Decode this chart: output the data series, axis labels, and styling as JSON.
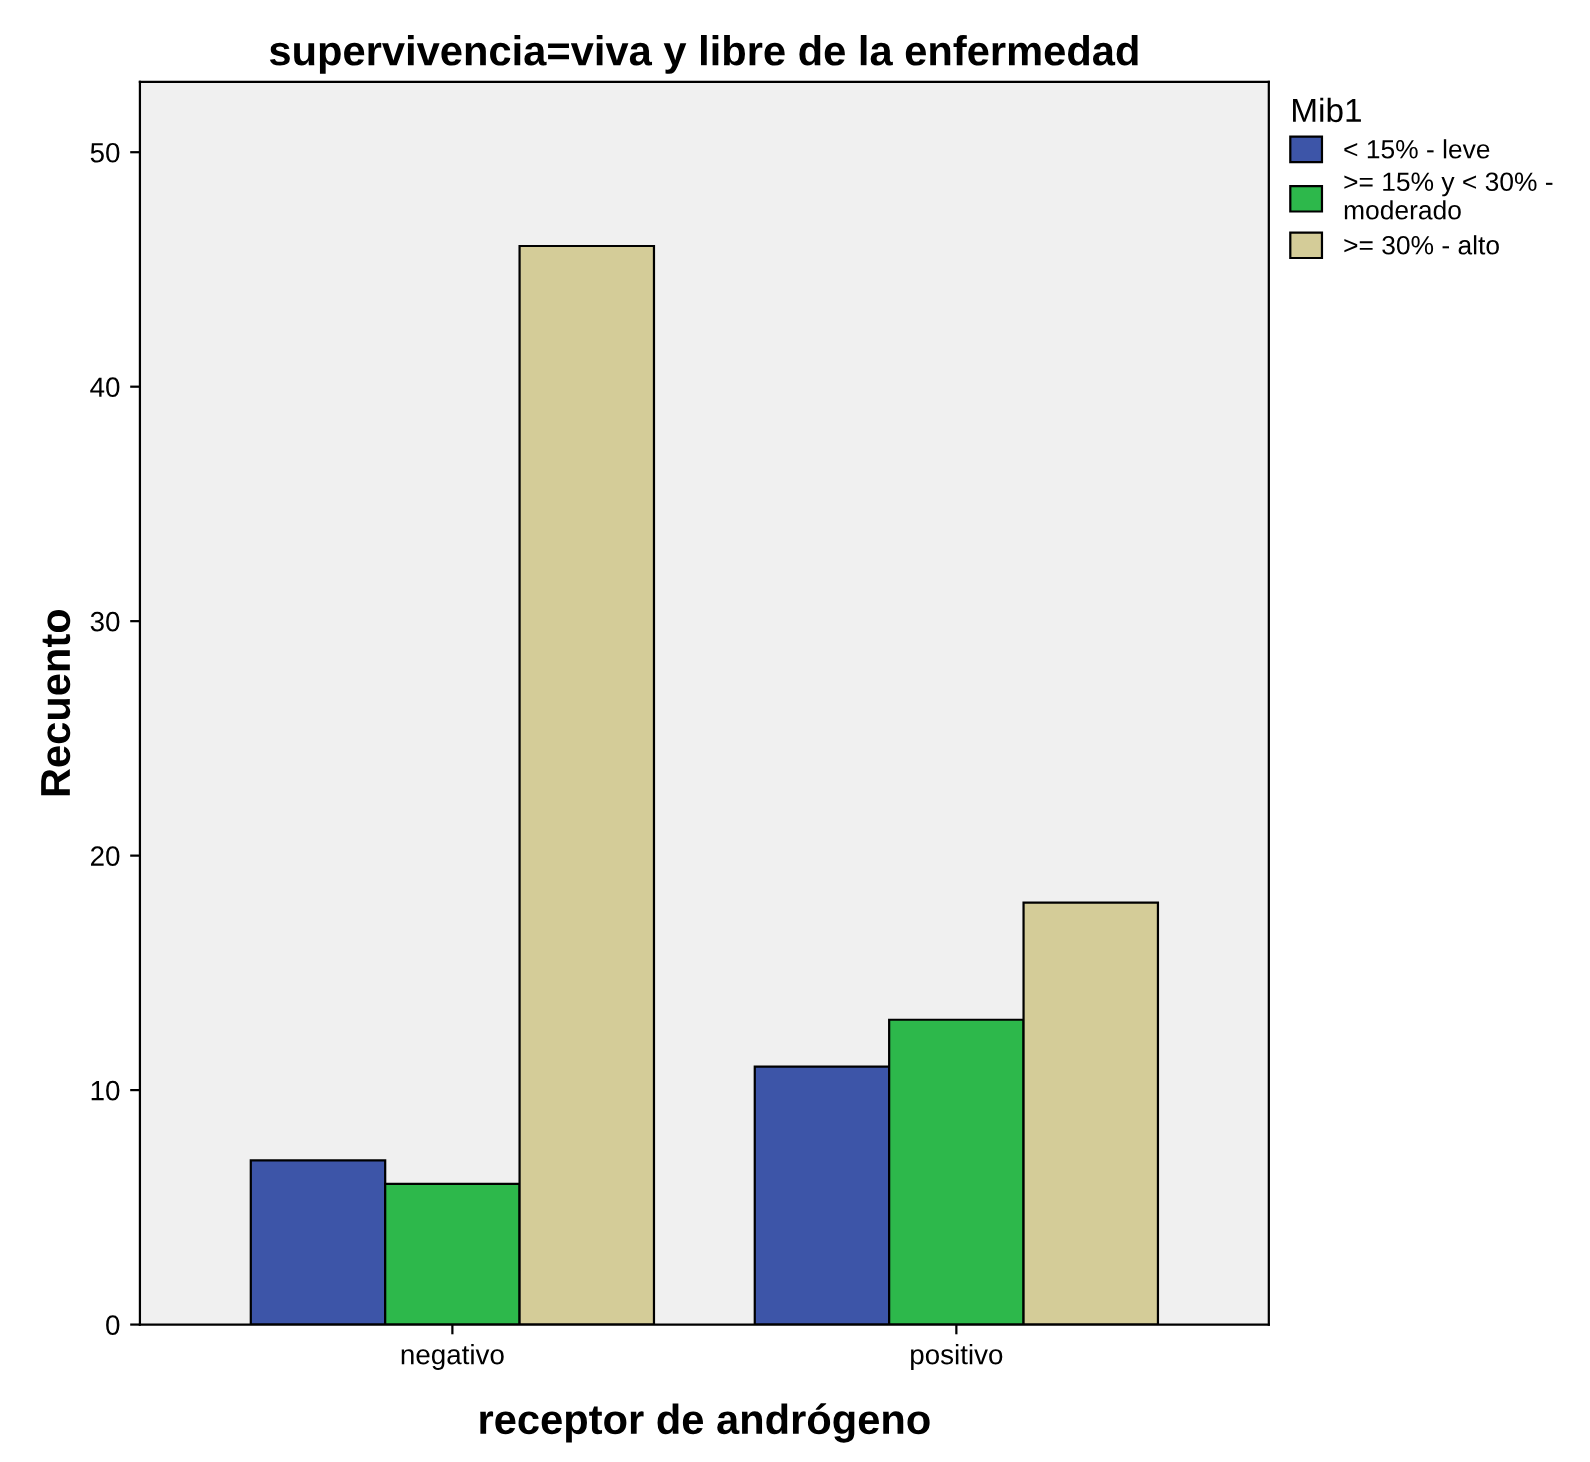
{
  "chart_data": {
    "type": "bar",
    "title": "supervivencia=viva y libre de la enfermedad",
    "xlabel": "receptor de andrógeno",
    "ylabel": "Recuento",
    "legend_title": "Mib1",
    "categories": [
      "negativo",
      "positivo"
    ],
    "series": [
      {
        "name": "< 15% - leve",
        "color": "#3d55a8",
        "values": [
          7,
          11
        ]
      },
      {
        "name": ">= 15% y < 30% - moderado",
        "color": "#2db84b",
        "values": [
          6,
          13
        ]
      },
      {
        "name": ">= 30% - alto",
        "color": "#d4cc98",
        "values": [
          46,
          18
        ]
      }
    ],
    "ylim": [
      0,
      53
    ],
    "yticks": [
      0,
      10,
      20,
      30,
      40,
      50
    ],
    "grid": false,
    "legend": "top right"
  }
}
